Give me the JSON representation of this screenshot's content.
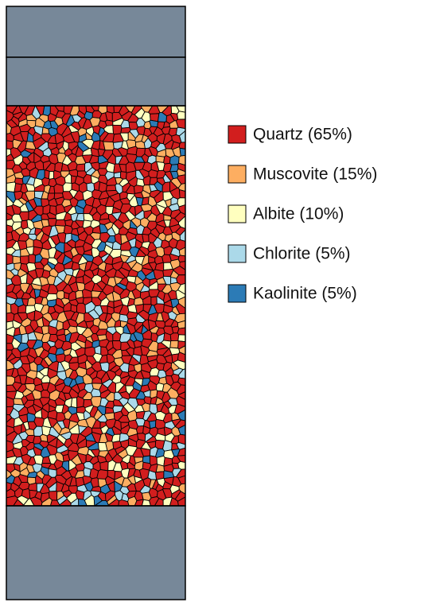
{
  "legend": {
    "items": [
      {
        "label": "Quartz (65%)",
        "color": "#d21e1e"
      },
      {
        "label": "Muscovite (15%)",
        "color": "#fdae61"
      },
      {
        "label": "Albite (10%)",
        "color": "#ffffbf"
      },
      {
        "label": "Chlorite (5%)",
        "color": "#abd9e9"
      },
      {
        "label": "Kaolinite (5%)",
        "color": "#2c7bb6"
      }
    ]
  }
}
